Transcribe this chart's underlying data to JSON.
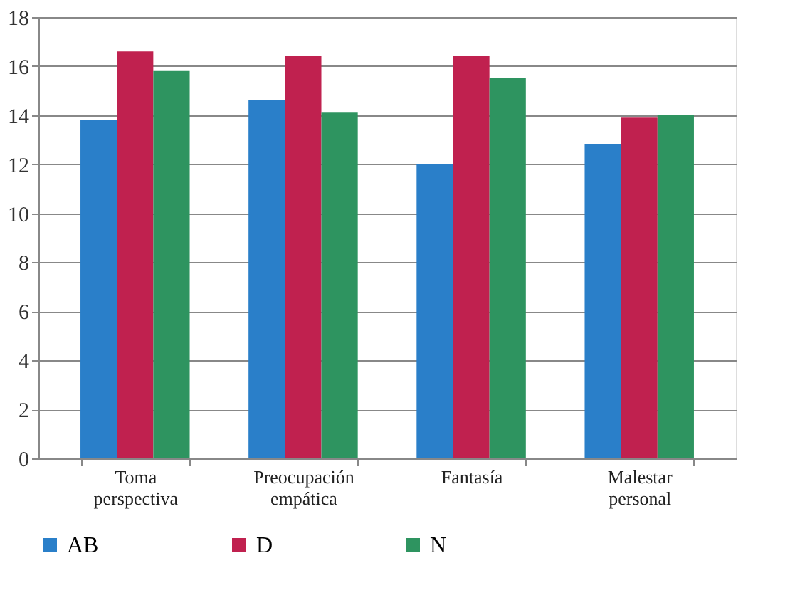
{
  "chart_data": {
    "type": "bar",
    "categories": [
      "Toma perspectiva",
      "Preocupación empática",
      "Fantasía",
      "Malestar personal"
    ],
    "series": [
      {
        "name": "AB",
        "color": "#2a7fc9",
        "values": [
          13.8,
          14.6,
          12.0,
          12.8
        ]
      },
      {
        "name": "D",
        "color": "#c0214f",
        "values": [
          16.6,
          16.4,
          16.4,
          13.9
        ]
      },
      {
        "name": "N",
        "color": "#2e9460",
        "values": [
          15.8,
          14.1,
          15.5,
          14.0
        ]
      }
    ],
    "ylim": [
      0,
      18
    ],
    "yticks": [
      0,
      2,
      4,
      6,
      8,
      10,
      12,
      14,
      16,
      18
    ],
    "grid": "y",
    "legend": "bottom"
  }
}
